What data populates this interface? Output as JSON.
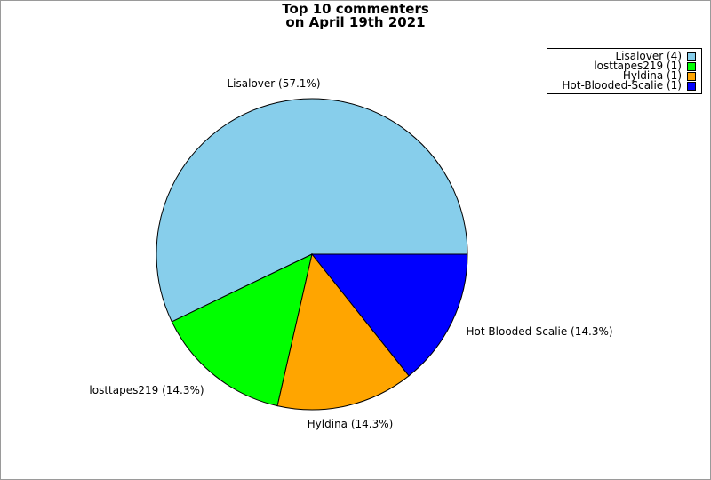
{
  "chart_data": {
    "type": "pie",
    "title_lines": [
      "Top 10 commenters",
      "on April 19th 2021"
    ],
    "slices": [
      {
        "label": "Lisalover",
        "value": 4,
        "percent_label": "Lisalover (57.1%)",
        "legend_label": "Lisalover (4)",
        "color": "#87ceeb"
      },
      {
        "label": "losttapes219",
        "value": 1,
        "percent_label": "losttapes219 (14.3%)",
        "legend_label": "losttapes219 (1)",
        "color": "#00ff00"
      },
      {
        "label": "Hyldina",
        "value": 1,
        "percent_label": "Hyldina (14.3%)",
        "legend_label": "Hyldina (1)",
        "color": "#ffa500"
      },
      {
        "label": "Hot-Blooded-Scalie",
        "value": 1,
        "percent_label": "Hot-Blooded-Scalie (14.3%)",
        "legend_label": "Hot-Blooded-Scalie (1)",
        "color": "#0000ff"
      }
    ],
    "legend_placement": "top-right"
  }
}
